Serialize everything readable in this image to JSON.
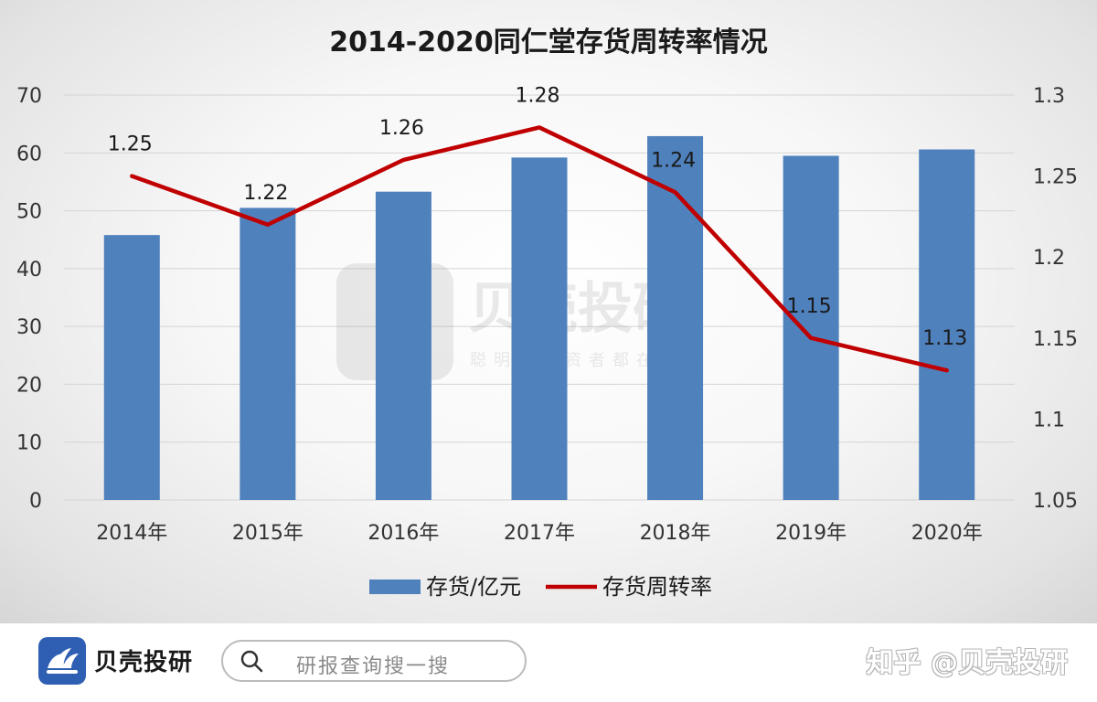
{
  "chart_data": {
    "type": "bar+line",
    "title": "2014-2020同仁堂存货周转率情况",
    "categories": [
      "2014年",
      "2015年",
      "2016年",
      "2017年",
      "2018年",
      "2019年",
      "2020年"
    ],
    "series": [
      {
        "name": "存货/亿元",
        "type": "bar",
        "axis": "left",
        "color": "#4f81bd",
        "values": [
          45.8,
          50.5,
          53.3,
          59.2,
          62.9,
          59.5,
          60.6
        ]
      },
      {
        "name": "存货周转率",
        "type": "line",
        "axis": "right",
        "color": "#c00000",
        "values": [
          1.25,
          1.22,
          1.26,
          1.28,
          1.24,
          1.15,
          1.13
        ],
        "data_labels": [
          "1.25",
          "1.22",
          "1.26",
          "1.28",
          "1.24",
          "1.15",
          "1.13"
        ]
      }
    ],
    "y_left": {
      "ylim": [
        0,
        70
      ],
      "ticks": [
        "0",
        "10",
        "20",
        "30",
        "40",
        "50",
        "60",
        "70"
      ]
    },
    "y_right": {
      "ylim": [
        1.05,
        1.3
      ],
      "ticks": [
        "1.05",
        "1.1",
        "1.15",
        "1.2",
        "1.25",
        "1.3"
      ]
    },
    "grid": true,
    "legend": "bottom"
  },
  "watermark": {
    "brand": "贝壳投研",
    "slogan": "聪明的投资者都在这里"
  },
  "footer": {
    "brand": "贝壳投研",
    "search_placeholder": "研报查询搜一搜",
    "credit": "知乎 @贝壳投研"
  }
}
